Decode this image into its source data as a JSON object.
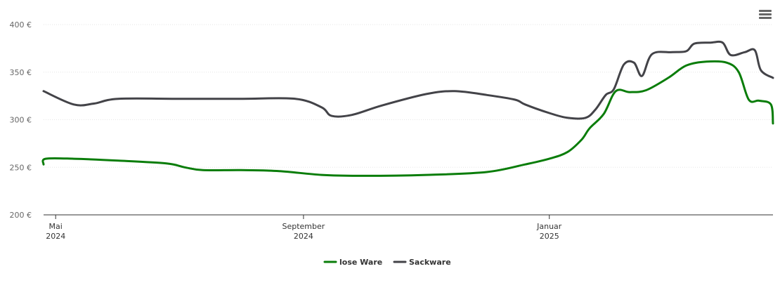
{
  "menu": {
    "icon": "hamburger-menu-icon"
  },
  "chart_data": {
    "type": "line",
    "title": "",
    "xlabel": "",
    "ylabel": "",
    "ylim": [
      200,
      400
    ],
    "y_ticks": [
      {
        "value": 200,
        "label": "200 €"
      },
      {
        "value": 250,
        "label": "250 €"
      },
      {
        "value": 300,
        "label": "300 €"
      },
      {
        "value": 350,
        "label": "350 €"
      },
      {
        "value": 400,
        "label": "400 €"
      }
    ],
    "xlim": [
      "2024-04-25",
      "2025-04-22"
    ],
    "x_ticks": [
      {
        "date": "2024-05-01",
        "line1": "Mai",
        "line2": "2024"
      },
      {
        "date": "2024-09-01",
        "line1": "September",
        "line2": "2024"
      },
      {
        "date": "2025-01-01",
        "line1": "Januar",
        "line2": "2025"
      }
    ],
    "grid": true,
    "legend": "bottom-center",
    "series": [
      {
        "name": "lose Ware",
        "color": "#0a7d0a",
        "points": [
          [
            "2024-04-25",
            253
          ],
          [
            "2024-04-26",
            259
          ],
          [
            "2024-05-10",
            259
          ],
          [
            "2024-06-01",
            257
          ],
          [
            "2024-06-25",
            254
          ],
          [
            "2024-07-04",
            250
          ],
          [
            "2024-07-13",
            247
          ],
          [
            "2024-08-01",
            247
          ],
          [
            "2024-08-20",
            246
          ],
          [
            "2024-09-10",
            242
          ],
          [
            "2024-10-01",
            241
          ],
          [
            "2024-11-01",
            242
          ],
          [
            "2024-12-01",
            245
          ],
          [
            "2024-12-20",
            253
          ],
          [
            "2025-01-01",
            259
          ],
          [
            "2025-01-10",
            266
          ],
          [
            "2025-01-17",
            279
          ],
          [
            "2025-01-21",
            291
          ],
          [
            "2025-01-28",
            306
          ],
          [
            "2025-02-03",
            330
          ],
          [
            "2025-02-10",
            329
          ],
          [
            "2025-02-18",
            331
          ],
          [
            "2025-03-01",
            344
          ],
          [
            "2025-03-10",
            357
          ],
          [
            "2025-03-20",
            361
          ],
          [
            "2025-03-30",
            360
          ],
          [
            "2025-04-05",
            350
          ],
          [
            "2025-04-10",
            321
          ],
          [
            "2025-04-15",
            320
          ],
          [
            "2025-04-21",
            316
          ],
          [
            "2025-04-22",
            296
          ]
        ]
      },
      {
        "name": "Sackware",
        "color": "#434348",
        "points": [
          [
            "2024-04-25",
            330
          ],
          [
            "2024-05-10",
            316
          ],
          [
            "2024-05-20",
            317
          ],
          [
            "2024-06-01",
            322
          ],
          [
            "2024-07-01",
            322
          ],
          [
            "2024-08-01",
            322
          ],
          [
            "2024-08-28",
            322
          ],
          [
            "2024-09-10",
            313
          ],
          [
            "2024-09-15",
            304
          ],
          [
            "2024-09-25",
            305
          ],
          [
            "2024-10-10",
            315
          ],
          [
            "2024-11-01",
            327
          ],
          [
            "2024-11-15",
            330
          ],
          [
            "2024-12-01",
            326
          ],
          [
            "2024-12-15",
            321
          ],
          [
            "2024-12-20",
            316
          ],
          [
            "2025-01-01",
            307
          ],
          [
            "2025-01-10",
            302
          ],
          [
            "2025-01-19",
            302
          ],
          [
            "2025-01-24",
            311
          ],
          [
            "2025-01-29",
            326
          ],
          [
            "2025-02-02",
            332
          ],
          [
            "2025-02-07",
            358
          ],
          [
            "2025-02-12",
            360
          ],
          [
            "2025-02-16",
            346
          ],
          [
            "2025-02-21",
            369
          ],
          [
            "2025-03-03",
            371
          ],
          [
            "2025-03-10",
            372
          ],
          [
            "2025-03-14",
            380
          ],
          [
            "2025-03-22",
            381
          ],
          [
            "2025-03-28",
            381
          ],
          [
            "2025-04-01",
            368
          ],
          [
            "2025-04-08",
            371
          ],
          [
            "2025-04-13",
            373
          ],
          [
            "2025-04-16",
            352
          ],
          [
            "2025-04-22",
            344
          ]
        ]
      }
    ]
  }
}
